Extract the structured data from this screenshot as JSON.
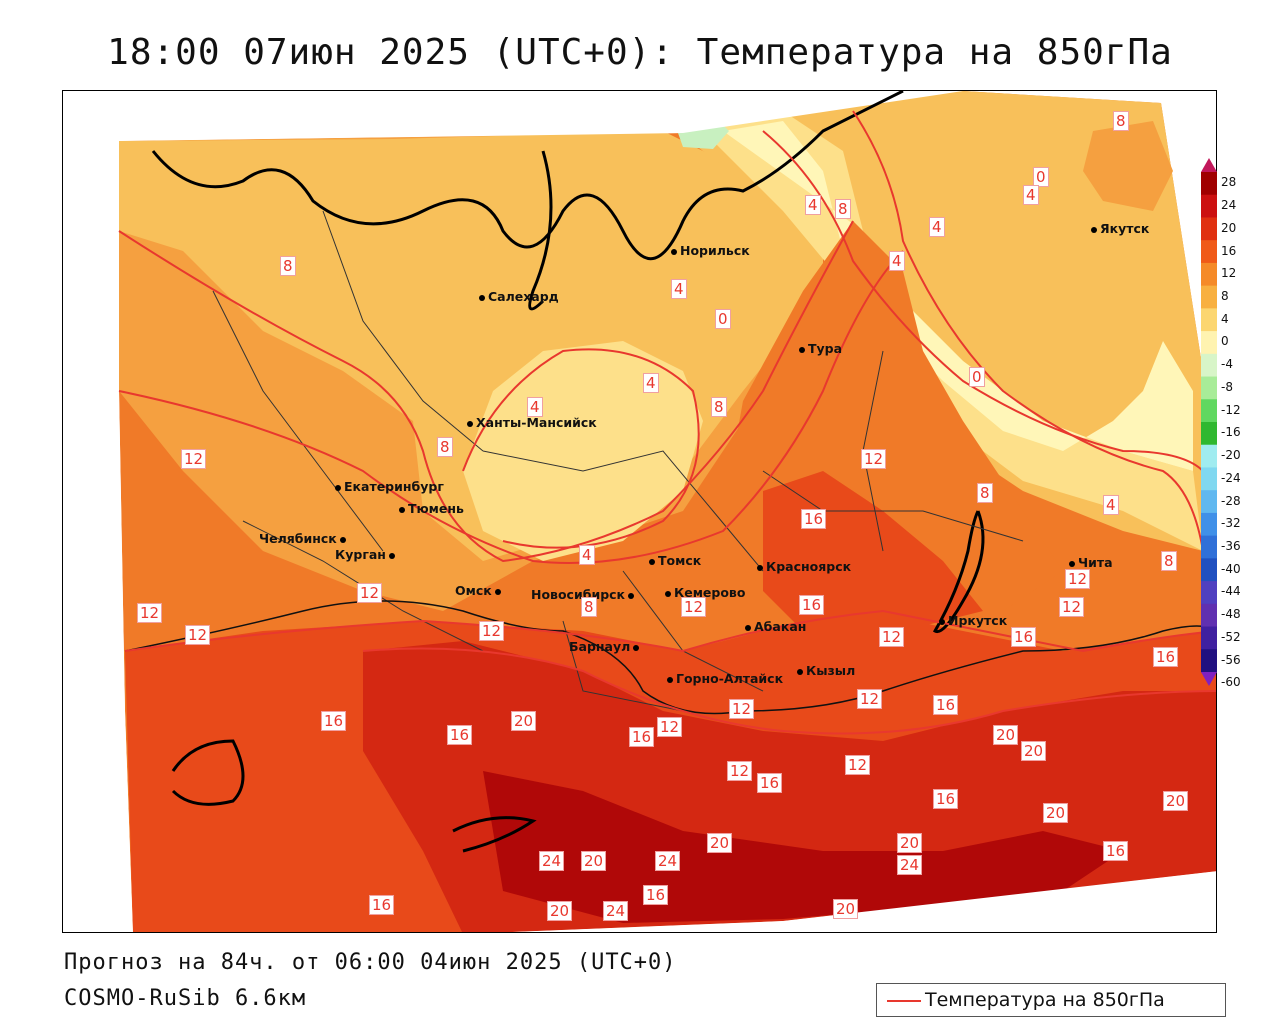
{
  "title": "18:00 07июн 2025 (UTC+0): Температура на 850гПа",
  "footer": {
    "forecast": "Прогноз на 84ч. от 06:00 04июн 2025 (UTC+0)",
    "model": "COSMO-RuSib 6.6км"
  },
  "legend": {
    "label": "Температура на 850гПа",
    "line_color": "#e8382e"
  },
  "colorbar": {
    "ticks": [
      "28",
      "24",
      "20",
      "16",
      "12",
      "8",
      "4",
      "0",
      "-4",
      "-8",
      "-12",
      "-16",
      "-20",
      "-24",
      "-28",
      "-32",
      "-36",
      "-40",
      "-44",
      "-48",
      "-52",
      "-56",
      "-60"
    ],
    "colors": [
      "#c2185b",
      "#a00000",
      "#cc1010",
      "#e03010",
      "#f05a18",
      "#f58a28",
      "#f8b040",
      "#fcd670",
      "#fff3b0",
      "#d8f5c8",
      "#a8ec98",
      "#60d860",
      "#30b830",
      "#a0ecf0",
      "#80d8f0",
      "#60b8f0",
      "#4090e8",
      "#3070d8",
      "#2050c0",
      "#5040c0",
      "#6030b0",
      "#4020a0",
      "#201080",
      "#8020c0"
    ]
  },
  "cities": [
    {
      "name": "Норильск"
    },
    {
      "name": "Салехард"
    },
    {
      "name": "Тура"
    },
    {
      "name": "Якутск"
    },
    {
      "name": "Ханты-Мансийск"
    },
    {
      "name": "Екатеринбург"
    },
    {
      "name": "Тюмень"
    },
    {
      "name": "Челябинск"
    },
    {
      "name": "Курган"
    },
    {
      "name": "Омск"
    },
    {
      "name": "Новосибирск"
    },
    {
      "name": "Томск"
    },
    {
      "name": "Кемерово"
    },
    {
      "name": "Красноярск"
    },
    {
      "name": "Барнаул"
    },
    {
      "name": "Абакан"
    },
    {
      "name": "Горно-Алтайск"
    },
    {
      "name": "Кызыл"
    },
    {
      "name": "Иркутск"
    },
    {
      "name": "Чита"
    }
  ],
  "isotherm_labels": [
    "8",
    "0",
    "4",
    "4",
    "8",
    "4",
    "4",
    "8",
    "0",
    "4",
    "0",
    "4",
    "8",
    "4",
    "8",
    "12",
    "12",
    "8",
    "4",
    "12",
    "16",
    "4",
    "8",
    "12",
    "12",
    "12",
    "8",
    "12",
    "12",
    "16",
    "12",
    "12",
    "16",
    "12",
    "16",
    "16",
    "16",
    "20",
    "16",
    "12",
    "12",
    "12",
    "16",
    "20",
    "20",
    "12",
    "16",
    "16",
    "20",
    "20",
    "16",
    "24",
    "20",
    "24",
    "20",
    "20",
    "24",
    "16",
    "20",
    "24",
    "16",
    "20"
  ],
  "colors": {
    "c0_4": "#fde08a",
    "c4_8": "#f8c05a",
    "c8_12": "#f5a040",
    "c12_16": "#f07a28",
    "c16_20": "#e84a1a",
    "c20_24": "#d42812",
    "c24_28": "#b00808",
    "cneg": "#fff6b8",
    "cgreen": "#c8f0c0",
    "isoline": "#e8382e"
  }
}
